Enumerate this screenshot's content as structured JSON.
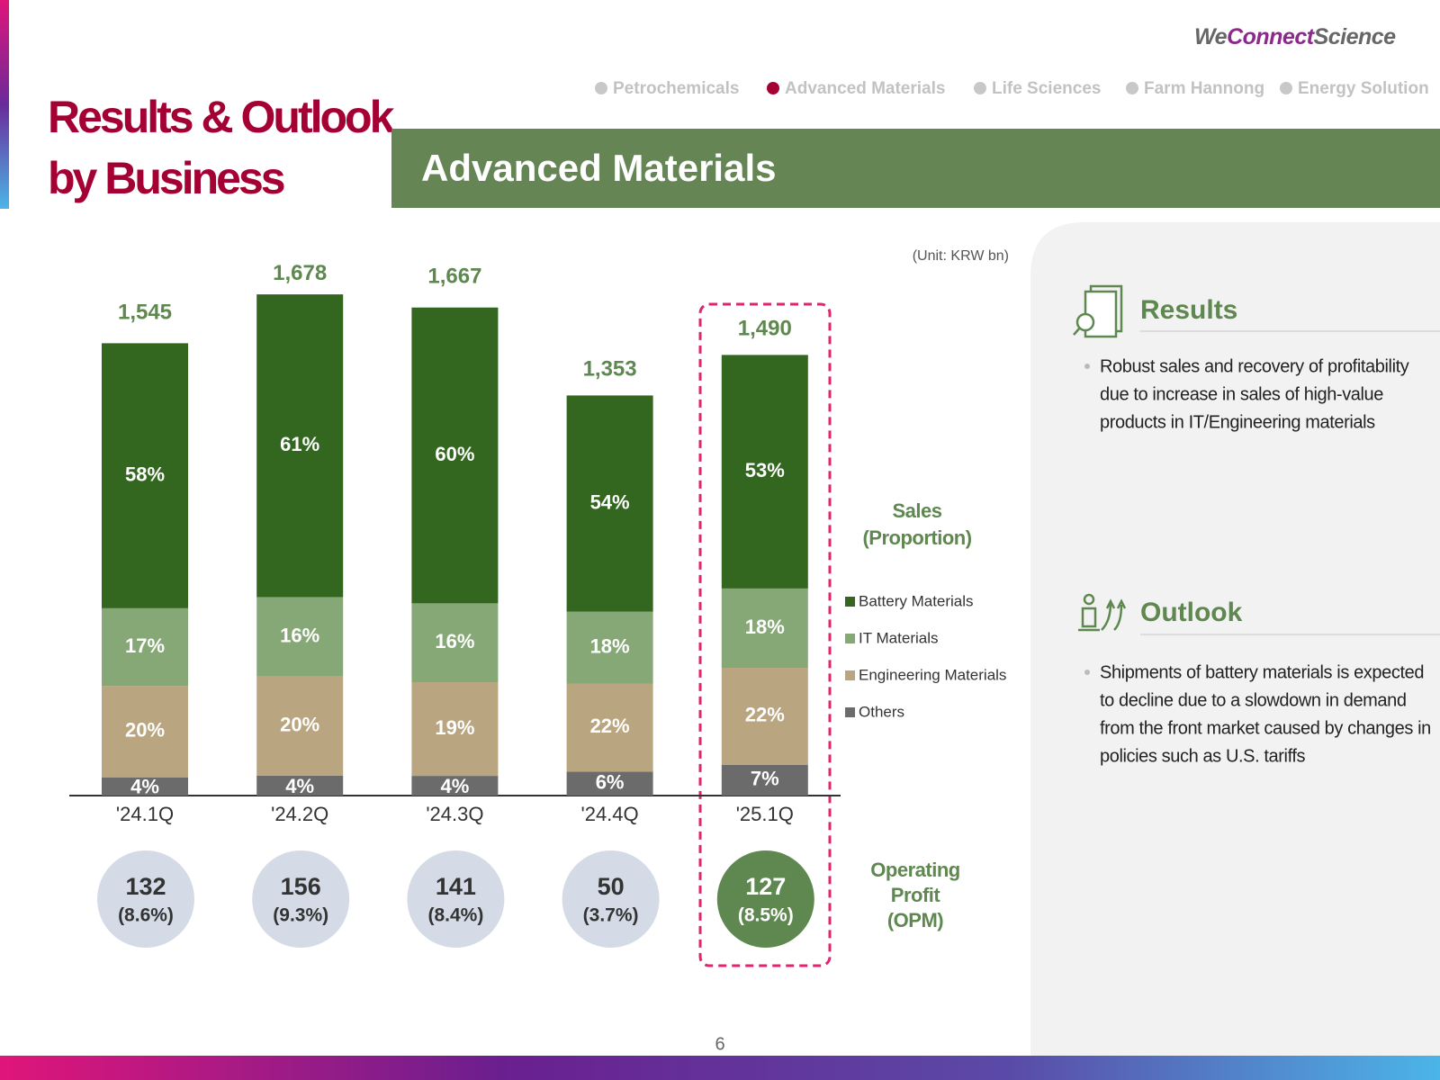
{
  "header": {
    "logo": [
      "We",
      "Connect",
      "Science"
    ],
    "title_lines": [
      "Results & Outlook",
      "by Business"
    ],
    "nav": [
      "Petrochemicals",
      "Advanced Materials",
      "Life Sciences",
      "Farm Hannong",
      "Energy Solution"
    ],
    "section_title": "Advanced Materials"
  },
  "chart_data": {
    "type": "bar",
    "stacked": true,
    "unit": "(Unit: KRW bn)",
    "categories": [
      "'24.1Q",
      "'24.2Q",
      "'24.3Q",
      "'24.4Q",
      "'25.1Q"
    ],
    "totals": {
      "values": [
        1545,
        1678,
        1667,
        1353,
        1490
      ],
      "value_labels": [
        "1,545",
        "1,678",
        "1,667",
        "1,353",
        "1,490"
      ]
    },
    "series": [
      {
        "name": "Others",
        "color": "#6b6b6b",
        "values": [
          4,
          4,
          4,
          6,
          7
        ],
        "value_labels": [
          "4%",
          "4%",
          "4%",
          "6%",
          "7%"
        ]
      },
      {
        "name": "Engineering Materials",
        "color": "#b9a57f",
        "values": [
          20,
          20,
          19,
          22,
          22
        ],
        "value_labels": [
          "20%",
          "20%",
          "19%",
          "22%",
          "22%"
        ]
      },
      {
        "name": "IT Materials",
        "color": "#86a876",
        "values": [
          17,
          16,
          16,
          18,
          18
        ],
        "value_labels": [
          "17%",
          "16%",
          "16%",
          "18%",
          "18%"
        ]
      },
      {
        "name": "Battery Materials",
        "color": "#33661f",
        "values": [
          58,
          61,
          60,
          54,
          53
        ],
        "value_labels": [
          "58%",
          "61%",
          "60%",
          "54%",
          "53%"
        ]
      }
    ],
    "sales_label": [
      "Sales",
      "(Proportion)"
    ],
    "operating_profit": {
      "label": [
        "Operating",
        "Profit",
        "(OPM)"
      ],
      "values": [
        132,
        156,
        141,
        50,
        127
      ],
      "opm": {
        "values": [
          8.6,
          9.3,
          8.4,
          3.7,
          8.5
        ],
        "value_labels": [
          "(8.6%)",
          "(9.3%)",
          "(8.4%)",
          "(3.7%)",
          "(8.5%)"
        ]
      }
    }
  },
  "results": {
    "heading": "Results",
    "lines": [
      "Robust sales and recovery of profitability",
      "due to increase in sales of high-value",
      "products in IT/Engineering materials"
    ]
  },
  "outlook": {
    "heading": "Outlook",
    "lines": [
      "Shipments of battery materials is expected",
      "to decline due to a slowdown in demand",
      "from the front market caused by changes in",
      "policies such as U.S. tariffs"
    ]
  },
  "page_number": "6"
}
